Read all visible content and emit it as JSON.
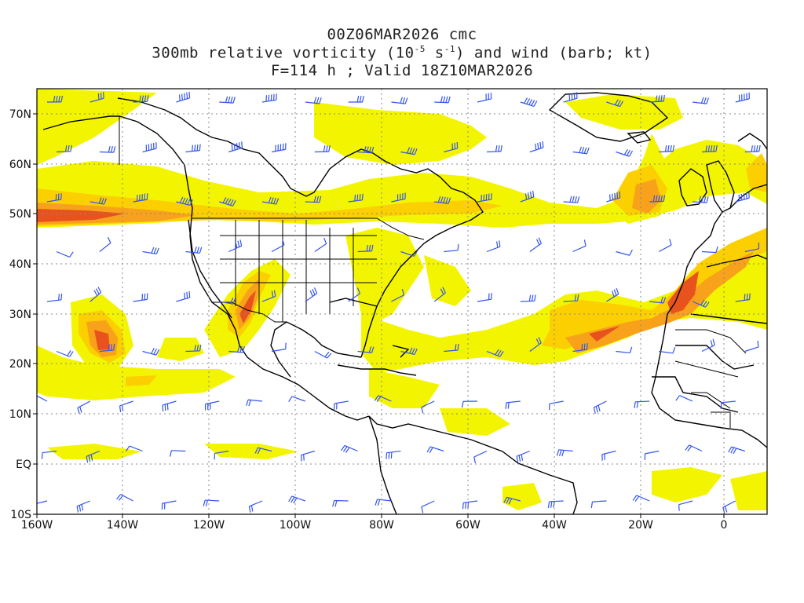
{
  "title": {
    "line1": "00Z06MAR2026 cmc",
    "line2_a": "300mb relative vorticity (10",
    "line2_exp1": "-5",
    "line2_b": " s",
    "line2_exp2": "-1",
    "line2_c": ") and wind (barb; kt)",
    "line3": "F=114 h ; Valid 18Z10MAR2026"
  },
  "map": {
    "lat_labels": [
      "70N",
      "60N",
      "50N",
      "40N",
      "30N",
      "20N",
      "10N",
      "EQ",
      "10S"
    ],
    "lon_labels": [
      "160W",
      "140W",
      "120W",
      "100W",
      "80W",
      "60W",
      "40W",
      "20W",
      "0"
    ],
    "shading_colors": [
      "#f3f500",
      "#fbe000",
      "#fbb400",
      "#f47e26",
      "#e0401a"
    ],
    "barb_color": "#3355ee",
    "coast_color": "#000000",
    "grid": "dotted"
  }
}
